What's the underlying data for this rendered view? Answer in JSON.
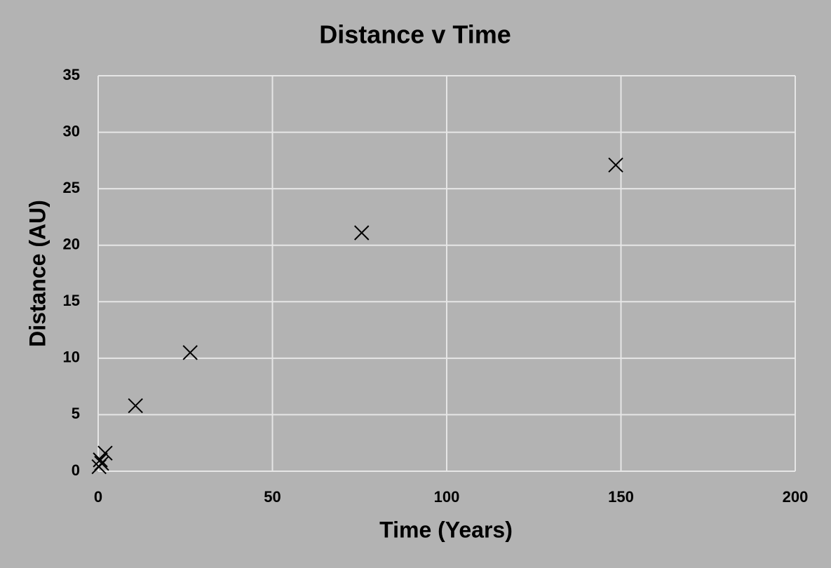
{
  "chart_data": {
    "type": "scatter",
    "title": "Distance v Time",
    "x_label": "Time (Years)",
    "y_label": "Distance (AU)",
    "title_color": "#13306b",
    "marker_color": "#000000",
    "grid": true,
    "x": [
      0.24,
      0.62,
      1.0,
      2.0,
      10.7,
      26.4,
      75.6,
      148.5
    ],
    "y": [
      0.4,
      1.0,
      0.7,
      1.6,
      5.8,
      10.5,
      21.1,
      27.1
    ],
    "xlim": [
      0,
      200
    ],
    "xticks": [
      0,
      50,
      100,
      150,
      200
    ],
    "ylim": [
      0,
      35
    ],
    "yticks": [
      0,
      5,
      10,
      15,
      20,
      25,
      30,
      35
    ]
  }
}
